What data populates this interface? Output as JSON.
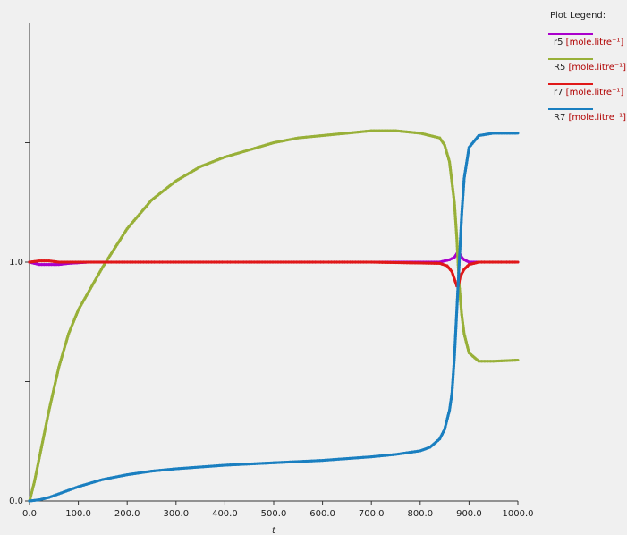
{
  "chart_data": {
    "type": "line",
    "xlabel": "t",
    "ylabel": "",
    "xlim": [
      0,
      1000
    ],
    "ylim": [
      0,
      2.0
    ],
    "x_ticks": [
      "0.0",
      "100.0",
      "200.0",
      "300.0",
      "400.0",
      "500.0",
      "600.0",
      "700.0",
      "800.0",
      "900.0",
      "1000.0"
    ],
    "y_ticks": [
      {
        "value": 0.0,
        "label": "0.0"
      },
      {
        "value": 0.5,
        "label": ""
      },
      {
        "value": 1.0,
        "label": "1.0"
      },
      {
        "value": 1.5,
        "label": ""
      }
    ],
    "grid": false,
    "legend_position": "right",
    "legend_title": "Plot Legend:",
    "series": [
      {
        "name": "r5",
        "unit": "[mole.litre⁻¹]",
        "color": "#aa00cc",
        "x": [
          0,
          20,
          40,
          60,
          80,
          120,
          200,
          400,
          700,
          840,
          860,
          870,
          875,
          880,
          885,
          890,
          900,
          920,
          960,
          1000
        ],
        "y": [
          1.0,
          0.99,
          0.99,
          0.99,
          0.995,
          1.0,
          1.0,
          1.0,
          1.0,
          1.0,
          1.01,
          1.02,
          1.035,
          1.04,
          1.02,
          1.01,
          1.0,
          1.0,
          1.0,
          1.0
        ]
      },
      {
        "name": "R5",
        "unit": "[mole.litre⁻¹]",
        "color": "#98b038",
        "x": [
          0,
          10,
          20,
          40,
          60,
          80,
          100,
          125,
          150,
          200,
          250,
          300,
          350,
          400,
          450,
          500,
          550,
          600,
          650,
          700,
          750,
          800,
          820,
          840,
          850,
          860,
          870,
          875,
          880,
          885,
          890,
          900,
          920,
          950,
          1000
        ],
        "y": [
          0.0,
          0.08,
          0.18,
          0.38,
          0.56,
          0.7,
          0.8,
          0.89,
          0.98,
          1.14,
          1.26,
          1.34,
          1.4,
          1.44,
          1.47,
          1.5,
          1.52,
          1.53,
          1.54,
          1.55,
          1.55,
          1.54,
          1.53,
          1.52,
          1.49,
          1.42,
          1.25,
          1.1,
          0.9,
          0.78,
          0.7,
          0.62,
          0.585,
          0.585,
          0.59
        ]
      },
      {
        "name": "r7",
        "unit": "[mole.litre⁻¹]",
        "color": "#e01818",
        "x": [
          0,
          20,
          40,
          60,
          100,
          200,
          400,
          700,
          840,
          855,
          865,
          870,
          875,
          878,
          882,
          890,
          900,
          920,
          960,
          1000
        ],
        "y": [
          1.0,
          1.005,
          1.005,
          1.0,
          1.0,
          1.0,
          1.0,
          1.0,
          0.995,
          0.985,
          0.96,
          0.93,
          0.9,
          0.9,
          0.94,
          0.97,
          0.99,
          1.0,
          1.0,
          1.0
        ]
      },
      {
        "name": "R7",
        "unit": "[mole.litre⁻¹]",
        "color": "#1a7fc0",
        "x": [
          0,
          20,
          40,
          60,
          80,
          100,
          150,
          200,
          250,
          300,
          400,
          500,
          600,
          700,
          750,
          800,
          820,
          840,
          850,
          860,
          865,
          870,
          875,
          880,
          885,
          890,
          900,
          920,
          950,
          1000
        ],
        "y": [
          0.0,
          0.005,
          0.015,
          0.03,
          0.045,
          0.06,
          0.09,
          0.11,
          0.125,
          0.135,
          0.15,
          0.16,
          0.17,
          0.185,
          0.195,
          0.21,
          0.225,
          0.26,
          0.3,
          0.38,
          0.45,
          0.6,
          0.8,
          1.0,
          1.2,
          1.35,
          1.48,
          1.53,
          1.54,
          1.54
        ]
      }
    ]
  }
}
